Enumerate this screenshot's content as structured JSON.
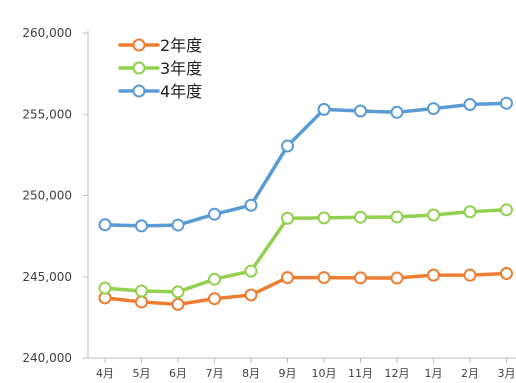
{
  "chart_data": {
    "type": "line",
    "categories": [
      "4月",
      "5月",
      "6月",
      "7月",
      "8月",
      "9月",
      "10月",
      "11月",
      "12月",
      "1月",
      "2月",
      "3月"
    ],
    "ylim": [
      240000,
      260000
    ],
    "yticks": [
      240000,
      245000,
      250000,
      255000,
      260000
    ],
    "ytick_labels": [
      "240,000",
      "245,000",
      "250,000",
      "255,000",
      "260,000"
    ],
    "grid": false,
    "legend_position": "top-left",
    "series": [
      {
        "name": "2年度",
        "color": "#ED7D31",
        "values": [
          243700,
          243450,
          243300,
          243650,
          243880,
          244950,
          244950,
          244930,
          244920,
          245100,
          245100,
          245200
        ]
      },
      {
        "name": "3年度",
        "color": "#92D050",
        "values": [
          244300,
          244120,
          244070,
          244850,
          245350,
          248600,
          248620,
          248660,
          248680,
          248800,
          249000,
          249120
        ]
      },
      {
        "name": "4年度",
        "color": "#5B9BD5",
        "values": [
          248200,
          248130,
          248180,
          248850,
          249400,
          253050,
          255300,
          255200,
          255120,
          255350,
          255600,
          255680
        ]
      }
    ]
  }
}
